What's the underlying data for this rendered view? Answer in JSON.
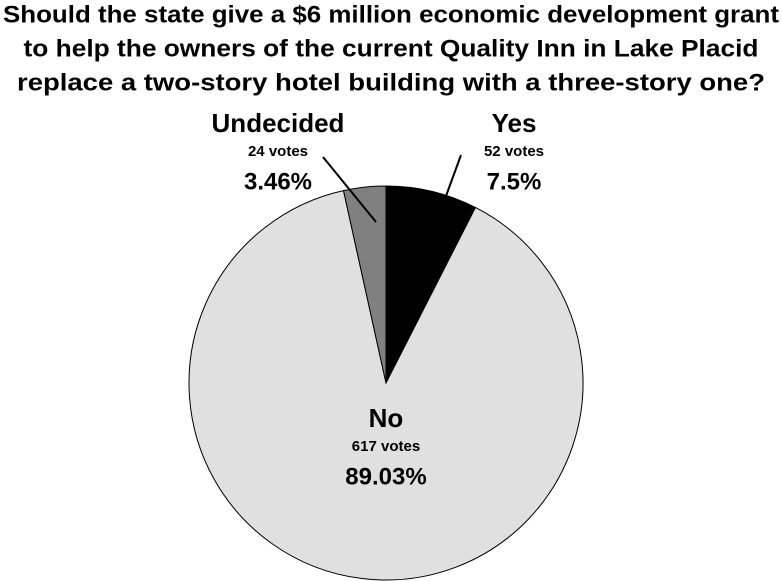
{
  "chart_data": {
    "type": "pie",
    "title": [
      "Should the state give a $6 million economic development grant",
      "to help the owners of the current Quality Inn in Lake Placid",
      "replace a two-story hotel building with a three-story one?"
    ],
    "categories": [
      "Yes",
      "No",
      "Undecided"
    ],
    "values": [
      7.5,
      89.03,
      3.46
    ],
    "value_labels": [
      "7.5%",
      "89.03%",
      "3.46%"
    ],
    "vote_labels": [
      "52 votes",
      "617 votes",
      "24 votes"
    ],
    "colors": [
      "#000000",
      "#e0e0e0",
      "#808080"
    ]
  }
}
